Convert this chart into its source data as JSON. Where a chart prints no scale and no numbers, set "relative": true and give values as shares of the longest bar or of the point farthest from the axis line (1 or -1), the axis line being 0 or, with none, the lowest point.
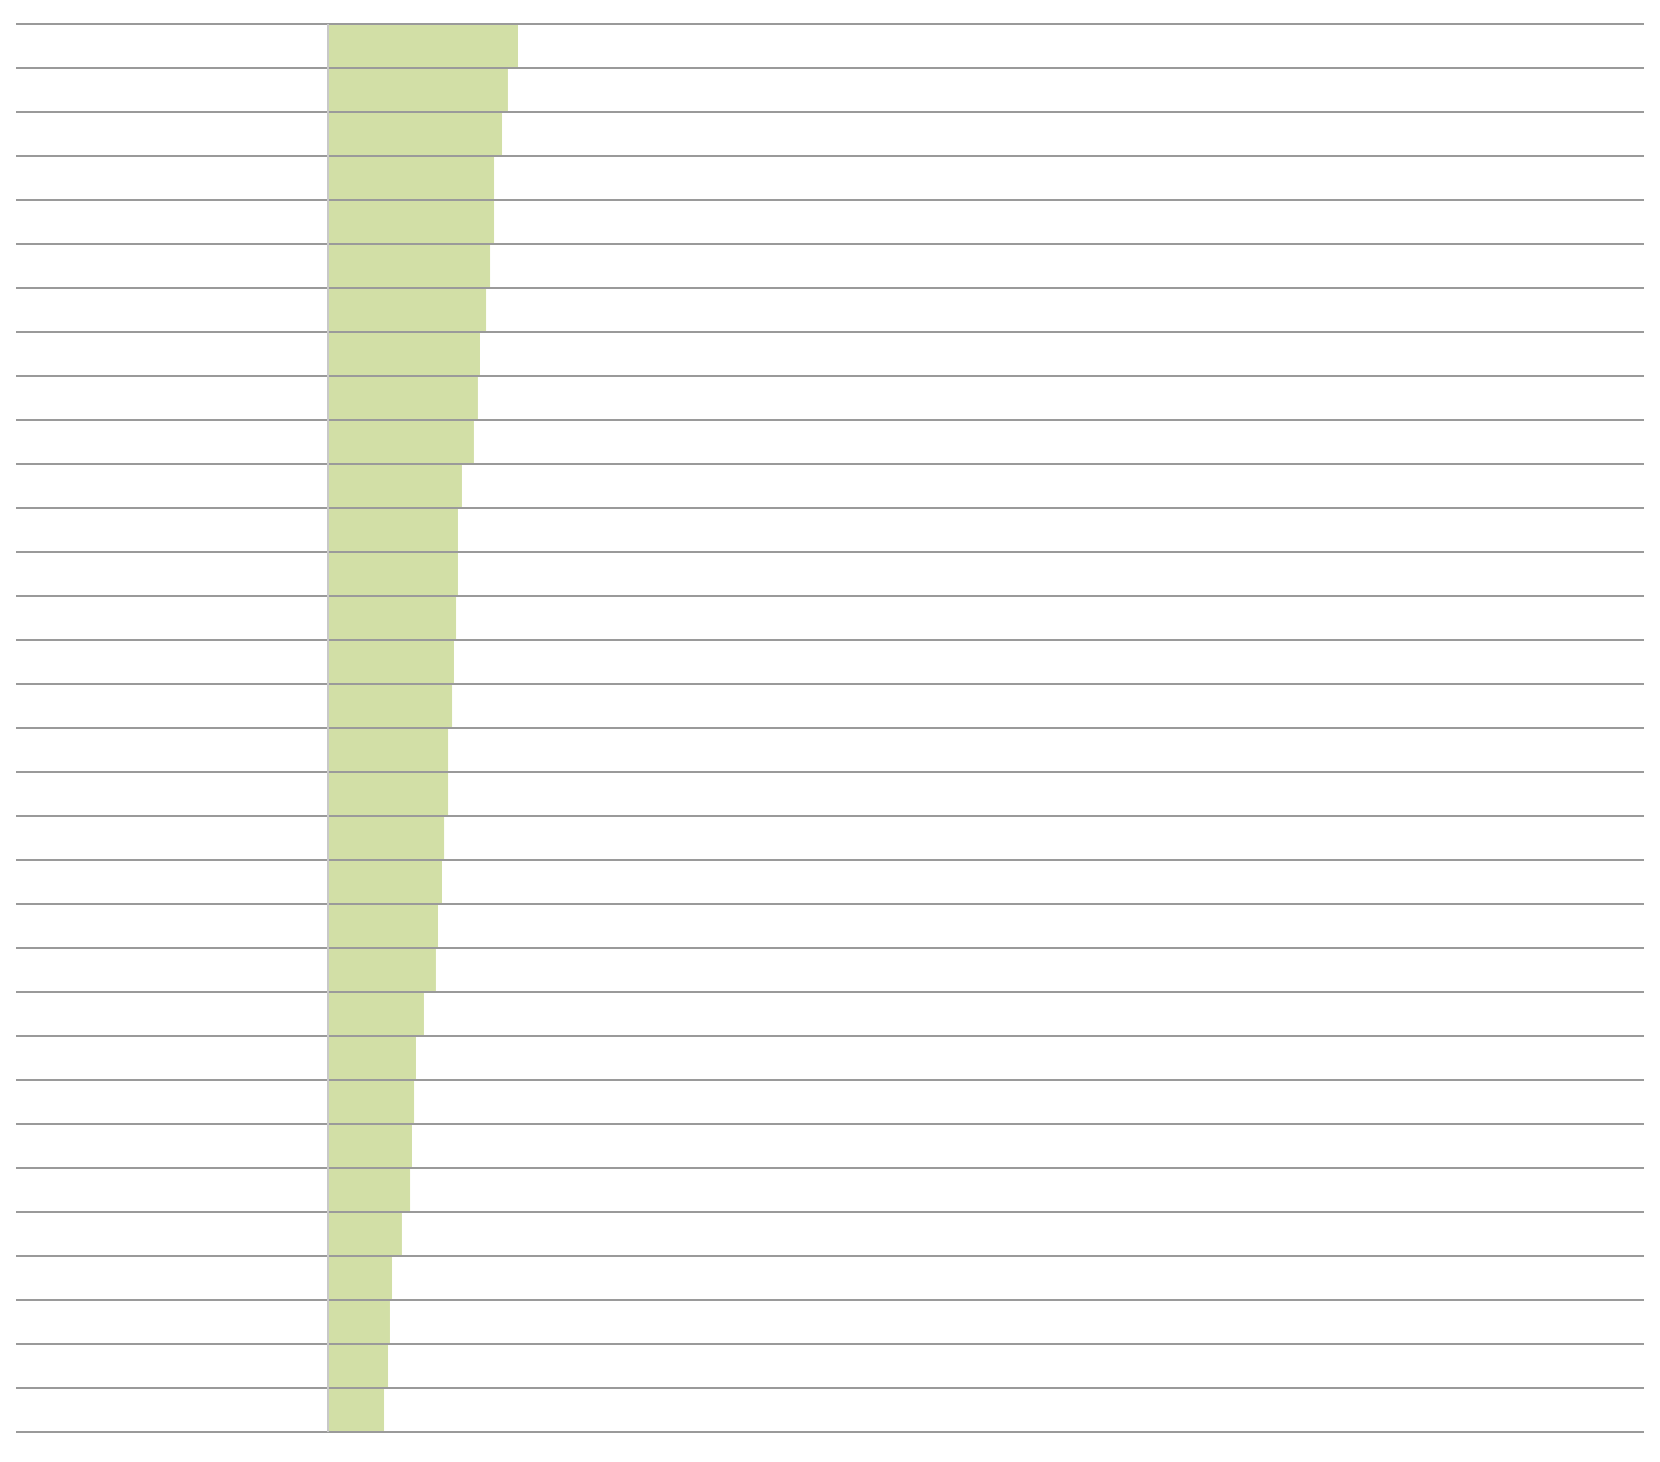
{
  "chart_data": {
    "type": "bar",
    "orientation": "horizontal",
    "relative": true,
    "grid": "y",
    "color": "#d2dfa6",
    "categories": [
      null,
      null,
      null,
      null,
      null,
      null,
      null,
      null,
      null,
      null,
      null,
      null,
      null,
      null,
      null,
      null,
      null,
      null,
      null,
      null,
      null,
      null,
      null,
      null,
      null,
      null,
      null,
      null,
      null,
      null,
      null,
      null
    ],
    "values": [
      1,
      0.947,
      0.916,
      0.874,
      0.874,
      0.853,
      0.832,
      0.8,
      0.789,
      0.768,
      0.705,
      0.684,
      0.684,
      0.674,
      0.663,
      0.653,
      0.632,
      0.632,
      0.611,
      0.6,
      0.579,
      0.568,
      0.505,
      0.463,
      0.453,
      0.442,
      0.432,
      0.389,
      0.337,
      0.326,
      0.316,
      0.295
    ]
  }
}
